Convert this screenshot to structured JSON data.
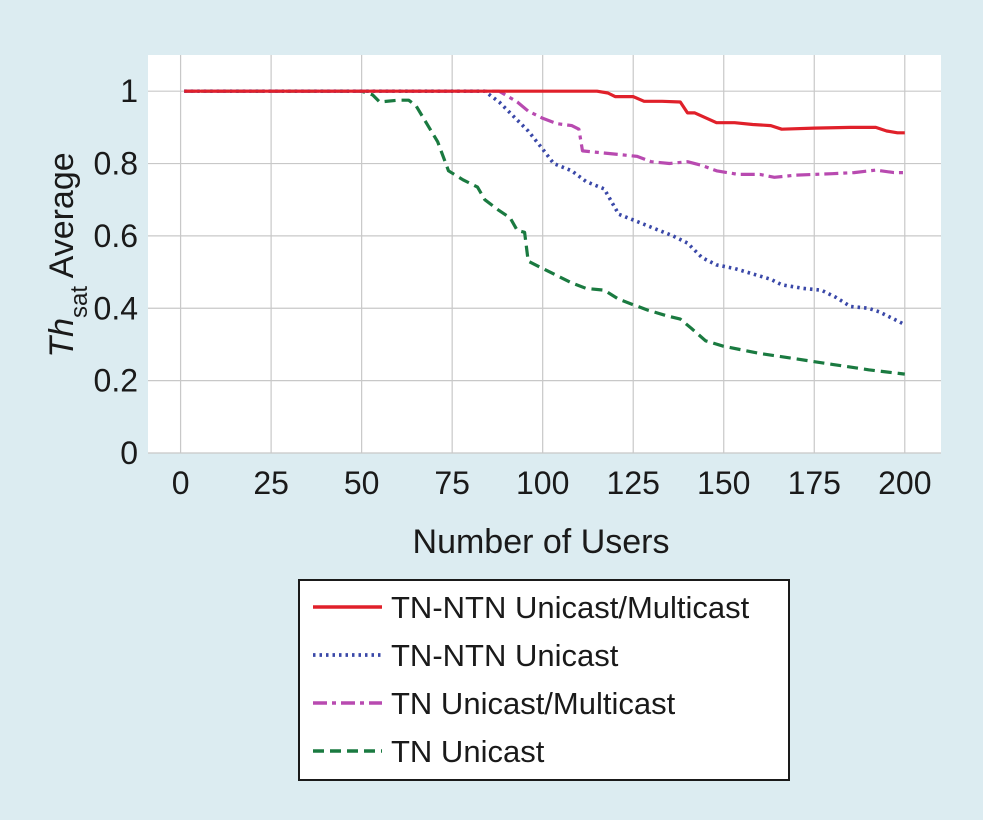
{
  "colors": {
    "background": "#dcecf1",
    "plot_background": "#ffffff",
    "grid": "#c8c8c8"
  },
  "chart_data": {
    "type": "line",
    "xlabel": "Number of Users",
    "ylabel_main": "Th",
    "ylabel_sub": "sat",
    "ylabel_rest": " Average",
    "xlim": [
      -9,
      210
    ],
    "ylim": [
      0,
      1.1
    ],
    "xticks": [
      0,
      25,
      50,
      75,
      100,
      125,
      150,
      175,
      200
    ],
    "yticks": [
      0,
      0.2,
      0.4,
      0.6,
      0.8,
      1
    ],
    "ytick_labels": [
      "0",
      "0.2",
      "0.4",
      "0.6",
      "0.8",
      "1"
    ],
    "grid": true,
    "legend_position": "below",
    "series": [
      {
        "name": "TN-NTN Unicast/Multicast",
        "color": "#e0202a",
        "dash": "solid",
        "points": [
          [
            1,
            1
          ],
          [
            115,
            1
          ],
          [
            118,
            0.995
          ],
          [
            120,
            0.985
          ],
          [
            125,
            0.985
          ],
          [
            128,
            0.972
          ],
          [
            133,
            0.972
          ],
          [
            138,
            0.97
          ],
          [
            140,
            0.94
          ],
          [
            142,
            0.94
          ],
          [
            148,
            0.913
          ],
          [
            153,
            0.913
          ],
          [
            158,
            0.908
          ],
          [
            163,
            0.905
          ],
          [
            166,
            0.895
          ],
          [
            175,
            0.898
          ],
          [
            185,
            0.9
          ],
          [
            192,
            0.9
          ],
          [
            195,
            0.89
          ],
          [
            198,
            0.885
          ],
          [
            200,
            0.885
          ]
        ]
      },
      {
        "name": "TN-NTN Unicast",
        "color": "#3a48a8",
        "dash": "dotted",
        "points": [
          [
            1,
            1
          ],
          [
            84,
            1
          ],
          [
            88,
            0.97
          ],
          [
            92,
            0.93
          ],
          [
            96,
            0.89
          ],
          [
            100,
            0.84
          ],
          [
            103,
            0.8
          ],
          [
            108,
            0.78
          ],
          [
            112,
            0.75
          ],
          [
            117,
            0.73
          ],
          [
            121,
            0.66
          ],
          [
            126,
            0.64
          ],
          [
            131,
            0.62
          ],
          [
            136,
            0.6
          ],
          [
            140,
            0.58
          ],
          [
            144,
            0.54
          ],
          [
            148,
            0.52
          ],
          [
            153,
            0.51
          ],
          [
            158,
            0.495
          ],
          [
            163,
            0.48
          ],
          [
            166,
            0.465
          ],
          [
            172,
            0.455
          ],
          [
            177,
            0.45
          ],
          [
            181,
            0.43
          ],
          [
            185,
            0.405
          ],
          [
            190,
            0.4
          ],
          [
            193,
            0.39
          ],
          [
            197,
            0.37
          ],
          [
            200,
            0.355
          ]
        ]
      },
      {
        "name": "TN Unicast/Multicast",
        "color": "#b84ab0",
        "dash": "dashdot",
        "points": [
          [
            1,
            1
          ],
          [
            88,
            1
          ],
          [
            93,
            0.97
          ],
          [
            96,
            0.945
          ],
          [
            100,
            0.925
          ],
          [
            104,
            0.91
          ],
          [
            108,
            0.905
          ],
          [
            110,
            0.895
          ],
          [
            111,
            0.835
          ],
          [
            116,
            0.83
          ],
          [
            121,
            0.825
          ],
          [
            126,
            0.82
          ],
          [
            130,
            0.805
          ],
          [
            135,
            0.8
          ],
          [
            140,
            0.805
          ],
          [
            144,
            0.795
          ],
          [
            148,
            0.78
          ],
          [
            154,
            0.77
          ],
          [
            160,
            0.77
          ],
          [
            164,
            0.762
          ],
          [
            170,
            0.768
          ],
          [
            180,
            0.772
          ],
          [
            186,
            0.775
          ],
          [
            192,
            0.782
          ],
          [
            197,
            0.775
          ],
          [
            200,
            0.775
          ]
        ]
      },
      {
        "name": "TN Unicast",
        "color": "#1a7a40",
        "dash": "dashed",
        "points": [
          [
            1,
            1
          ],
          [
            50,
            1
          ],
          [
            53,
            0.99
          ],
          [
            55,
            0.97
          ],
          [
            60,
            0.975
          ],
          [
            63,
            0.975
          ],
          [
            65,
            0.96
          ],
          [
            68,
            0.91
          ],
          [
            71,
            0.86
          ],
          [
            74,
            0.78
          ],
          [
            78,
            0.755
          ],
          [
            82,
            0.735
          ],
          [
            84,
            0.7
          ],
          [
            88,
            0.67
          ],
          [
            91,
            0.65
          ],
          [
            93,
            0.615
          ],
          [
            95,
            0.61
          ],
          [
            96,
            0.53
          ],
          [
            100,
            0.51
          ],
          [
            104,
            0.49
          ],
          [
            108,
            0.47
          ],
          [
            112,
            0.455
          ],
          [
            117,
            0.45
          ],
          [
            121,
            0.425
          ],
          [
            125,
            0.41
          ],
          [
            129,
            0.395
          ],
          [
            134,
            0.38
          ],
          [
            138,
            0.37
          ],
          [
            141,
            0.345
          ],
          [
            145,
            0.31
          ],
          [
            150,
            0.295
          ],
          [
            155,
            0.285
          ],
          [
            160,
            0.275
          ],
          [
            170,
            0.26
          ],
          [
            180,
            0.245
          ],
          [
            190,
            0.23
          ],
          [
            200,
            0.218
          ]
        ]
      }
    ]
  }
}
